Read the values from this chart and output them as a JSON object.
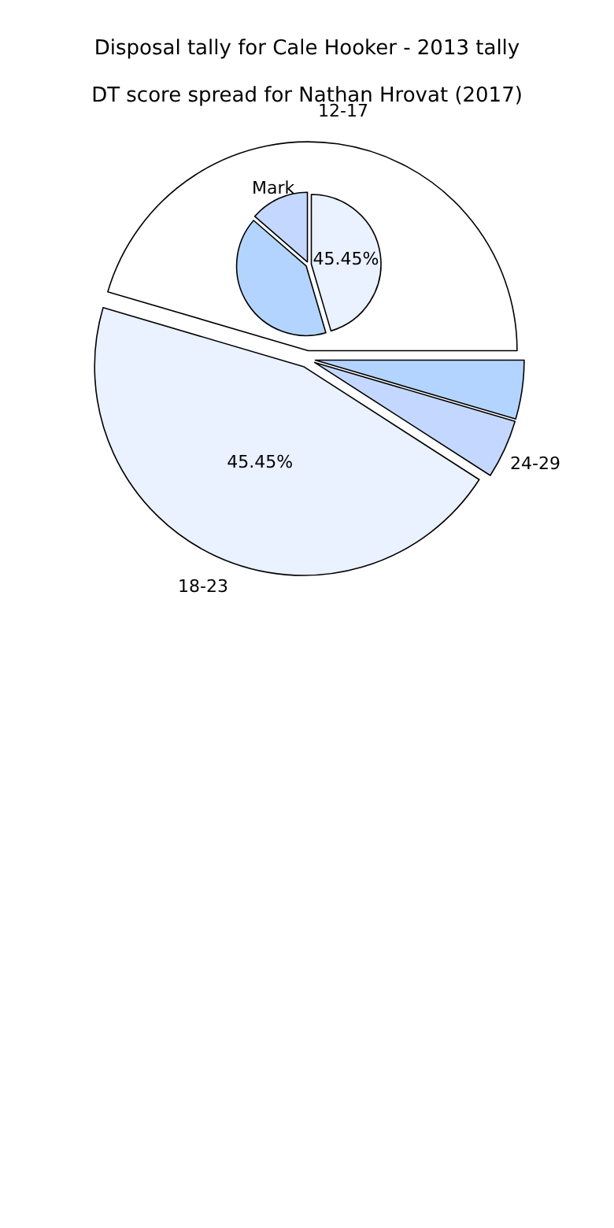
{
  "chart_data": [
    {
      "type": "pie",
      "title": "Disposal tally for Cale Hooker - 2013 tally",
      "categories": [
        "Mark",
        null,
        null
      ],
      "values": [
        13.64,
        40.91,
        45.45
      ],
      "colors": [
        "#c4d8ff",
        "#b3d4ff",
        "#eaf1ff"
      ],
      "value_labels": [
        null,
        null,
        "45.45%"
      ],
      "legend": false
    },
    {
      "type": "pie",
      "title": "DT score spread for Nathan Hrovat (2017)",
      "categories": [
        "12-17",
        "18-23",
        "24-29",
        null
      ],
      "values": [
        45.45,
        45.45,
        4.55,
        4.55
      ],
      "colors": [
        "#ffffff",
        "#eaf1ff",
        "#c4d8ff",
        "#b3d4ff"
      ],
      "value_labels": [
        null,
        "45.45%",
        null,
        null
      ],
      "legend": false
    }
  ]
}
